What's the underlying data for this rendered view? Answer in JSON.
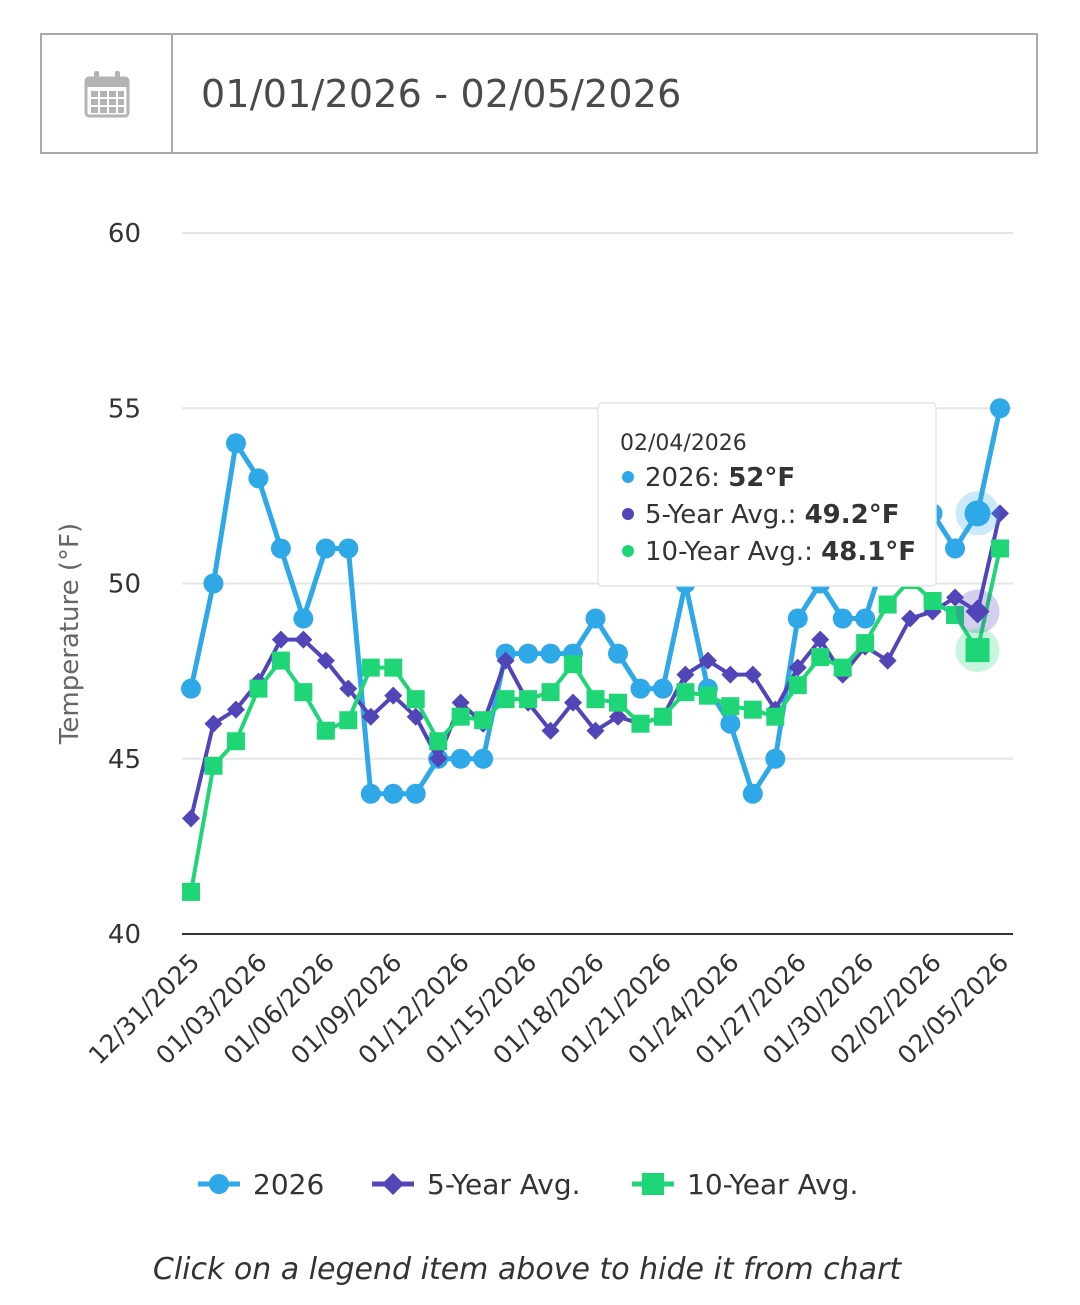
{
  "date_range": {
    "icon": "calendar-icon",
    "text": "01/01/2026 - 02/05/2026"
  },
  "hint": "Click on a legend item above to hide it from chart",
  "tooltip": {
    "date": "02/04/2026",
    "rows": [
      {
        "label": "2026:",
        "value": "52°F"
      },
      {
        "label": "5-Year Avg.:",
        "value": "49.2°F"
      },
      {
        "label": "10-Year Avg.:",
        "value": "48.1°F"
      }
    ]
  },
  "chart_data": {
    "type": "line",
    "ylabel": "Temperature (°F)",
    "xlabel": "",
    "ylim": [
      40,
      60
    ],
    "y_ticks": [
      40,
      45,
      50,
      55,
      60
    ],
    "grid": true,
    "legend_position": "bottom",
    "x": [
      "12/31/2025",
      "01/01/2026",
      "01/02/2026",
      "01/03/2026",
      "01/04/2026",
      "01/05/2026",
      "01/06/2026",
      "01/07/2026",
      "01/08/2026",
      "01/09/2026",
      "01/10/2026",
      "01/11/2026",
      "01/12/2026",
      "01/13/2026",
      "01/14/2026",
      "01/15/2026",
      "01/16/2026",
      "01/17/2026",
      "01/18/2026",
      "01/19/2026",
      "01/20/2026",
      "01/21/2026",
      "01/22/2026",
      "01/23/2026",
      "01/24/2026",
      "01/25/2026",
      "01/26/2026",
      "01/27/2026",
      "01/28/2026",
      "01/29/2026",
      "01/30/2026",
      "01/31/2026",
      "02/01/2026",
      "02/02/2026",
      "02/03/2026",
      "02/04/2026",
      "02/05/2026"
    ],
    "x_tick_labels": [
      "12/31/2025",
      "01/03/2026",
      "01/06/2026",
      "01/09/2026",
      "01/12/2026",
      "01/15/2026",
      "01/18/2026",
      "01/21/2026",
      "01/24/2026",
      "01/27/2026",
      "01/30/2026",
      "02/02/2026",
      "02/05/2026"
    ],
    "highlight_x": "02/04/2026",
    "series": [
      {
        "name": "2026",
        "color": "#2fa8e8",
        "marker": "circle",
        "values": [
          47,
          50,
          54,
          53,
          51,
          49,
          51,
          51,
          44,
          44,
          44,
          45,
          45,
          45,
          48,
          48,
          48,
          48,
          49,
          48,
          47,
          47,
          50,
          47,
          46,
          44,
          45,
          49,
          50,
          49,
          49,
          51,
          52,
          52,
          51,
          52,
          55
        ]
      },
      {
        "name": "5-Year Avg.",
        "color": "#5145b8",
        "marker": "diamond",
        "values": [
          43.3,
          46.0,
          46.4,
          47.2,
          48.4,
          48.4,
          47.8,
          47.0,
          46.2,
          46.8,
          46.2,
          45.0,
          46.6,
          46.0,
          47.8,
          46.6,
          45.8,
          46.6,
          45.8,
          46.2,
          46.0,
          46.2,
          47.4,
          47.8,
          47.4,
          47.4,
          46.4,
          47.6,
          48.4,
          47.4,
          48.2,
          47.8,
          49.0,
          49.2,
          49.6,
          49.2,
          52.0
        ]
      },
      {
        "name": "10-Year Avg.",
        "color": "#1fd676",
        "marker": "square",
        "values": [
          41.2,
          44.8,
          45.5,
          47.0,
          47.8,
          46.9,
          45.8,
          46.1,
          47.6,
          47.6,
          46.7,
          45.5,
          46.2,
          46.1,
          46.7,
          46.7,
          46.9,
          47.7,
          46.7,
          46.6,
          46.0,
          46.2,
          46.9,
          46.8,
          46.5,
          46.4,
          46.2,
          47.1,
          47.9,
          47.6,
          48.3,
          49.4,
          50.1,
          49.5,
          49.1,
          48.1,
          51.0
        ]
      }
    ]
  }
}
